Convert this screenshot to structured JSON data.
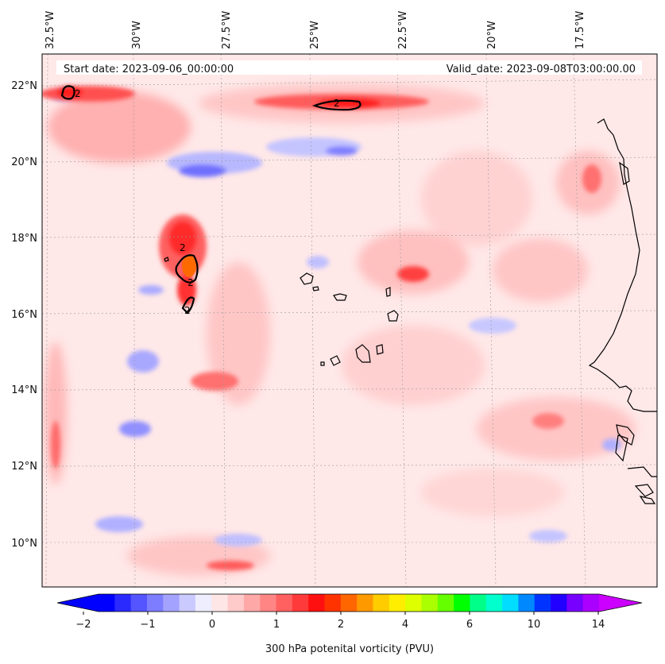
{
  "map": {
    "variable_title": "300 hPa potenital vorticity (PVU)",
    "start_date": "Start date: 2023-09-06_00:00:00",
    "valid_date": "Valid_date: 2023-09-08T03:00:00.00",
    "lon_range": [
      -33.0,
      -14.8
    ],
    "lat_range": [
      8.9,
      22.8
    ],
    "lon_ticks": [
      "32.5°W",
      "30°W",
      "27.5°W",
      "25°W",
      "22.5°W",
      "20°W",
      "17.5°W"
    ],
    "lat_ticks": [
      "22°N",
      "20°N",
      "18°N",
      "16°N",
      "14°N",
      "12°N",
      "10°N"
    ],
    "contour_label": "2",
    "colorbar": {
      "tick_labels": [
        "−2",
        "−1",
        "0",
        "1",
        "2",
        "4",
        "6",
        "10",
        "14"
      ],
      "colors": [
        "#0000ff",
        "#2a2aff",
        "#5555ff",
        "#7d7dff",
        "#a3a3ff",
        "#cacaff",
        "#eeeeff",
        "#ffe6e6",
        "#ffcaca",
        "#ffa8a8",
        "#ff8585",
        "#ff6060",
        "#ff3a3a",
        "#ff1010",
        "#ff3300",
        "#ff6600",
        "#ff9900",
        "#ffcc00",
        "#ffee00",
        "#ddff00",
        "#aaff00",
        "#66ff00",
        "#00ff00",
        "#00ff88",
        "#00ffcc",
        "#00ddff",
        "#0088ff",
        "#0033ff",
        "#2200ff",
        "#7700ff",
        "#aa00ff"
      ],
      "extend_low_color": "#0000ff",
      "extend_high_color": "#cc00ff"
    }
  }
}
